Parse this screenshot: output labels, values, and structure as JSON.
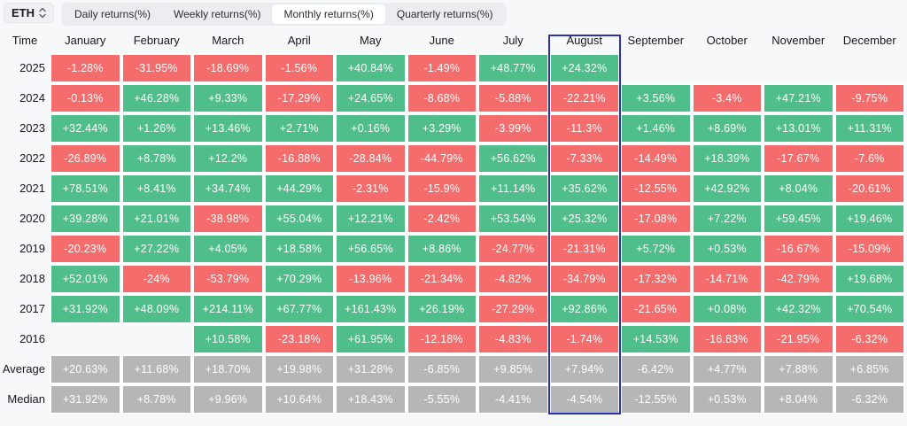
{
  "page": {
    "symbol": "ETH",
    "time_header": "Time",
    "tabs": [
      {
        "label": "Daily returns(%)",
        "active": false
      },
      {
        "label": "Weekly returns(%)",
        "active": false
      },
      {
        "label": "Monthly returns(%)",
        "active": true
      },
      {
        "label": "Quarterly returns(%)",
        "active": false
      }
    ]
  },
  "chart_data": {
    "type": "heatmap",
    "title": "Monthly returns(%)",
    "columns": [
      "January",
      "February",
      "March",
      "April",
      "May",
      "June",
      "July",
      "August",
      "September",
      "October",
      "November",
      "December"
    ],
    "rows": [
      "2025",
      "2024",
      "2023",
      "2022",
      "2021",
      "2020",
      "2019",
      "2018",
      "2017",
      "2016",
      "Average",
      "Median"
    ],
    "summary_rows": [
      "Average",
      "Median"
    ],
    "highlighted_column": "August",
    "values": [
      [
        "-1.28%",
        "-31.95%",
        "-18.69%",
        "-1.56%",
        "+40.84%",
        "-1.49%",
        "+48.77%",
        "+24.32%",
        "",
        "",
        "",
        ""
      ],
      [
        "-0.13%",
        "+46.28%",
        "+9.33%",
        "-17.29%",
        "+24.65%",
        "-8.68%",
        "-5.88%",
        "-22.21%",
        "+3.56%",
        "-3.4%",
        "+47.21%",
        "-9.75%"
      ],
      [
        "+32.44%",
        "+1.26%",
        "+13.46%",
        "+2.71%",
        "+0.16%",
        "+3.29%",
        "-3.99%",
        "-11.3%",
        "+1.46%",
        "+8.69%",
        "+13.01%",
        "+11.31%"
      ],
      [
        "-26.89%",
        "+8.78%",
        "+12.2%",
        "-16.88%",
        "-28.84%",
        "-44.79%",
        "+56.62%",
        "-7.33%",
        "-14.49%",
        "+18.39%",
        "-17.67%",
        "-7.6%"
      ],
      [
        "+78.51%",
        "+8.41%",
        "+34.74%",
        "+44.29%",
        "-2.31%",
        "-15.9%",
        "+11.14%",
        "+35.62%",
        "-12.55%",
        "+42.92%",
        "+8.04%",
        "-20.61%"
      ],
      [
        "+39.28%",
        "+21.01%",
        "-38.98%",
        "+55.04%",
        "+12.21%",
        "-2.42%",
        "+53.54%",
        "+25.32%",
        "-17.08%",
        "+7.22%",
        "+59.45%",
        "+19.46%"
      ],
      [
        "-20.23%",
        "+27.22%",
        "+4.05%",
        "+18.58%",
        "+56.65%",
        "+8.86%",
        "-24.77%",
        "-21.31%",
        "+5.72%",
        "+0.53%",
        "-16.67%",
        "-15.09%"
      ],
      [
        "+52.01%",
        "-24%",
        "-53.79%",
        "+70.29%",
        "-13.96%",
        "-21.34%",
        "-4.82%",
        "-34.79%",
        "-17.32%",
        "-14.71%",
        "-42.79%",
        "+19.68%"
      ],
      [
        "+31.92%",
        "+48.09%",
        "+214.11%",
        "+67.77%",
        "+161.43%",
        "+26.19%",
        "-27.29%",
        "+92.86%",
        "-21.65%",
        "+0.08%",
        "+42.32%",
        "+70.54%"
      ],
      [
        "",
        "",
        "+10.58%",
        "-23.18%",
        "+61.95%",
        "-12.18%",
        "-4.83%",
        "-1.74%",
        "+14.53%",
        "-16.83%",
        "-21.95%",
        "-6.32%"
      ],
      [
        "+20.63%",
        "+11.68%",
        "+18.70%",
        "+19.98%",
        "+31.28%",
        "-6.85%",
        "+9.85%",
        "+7.94%",
        "-6.42%",
        "+4.77%",
        "+7.88%",
        "+6.85%"
      ],
      [
        "+31.92%",
        "+8.78%",
        "+9.96%",
        "+10.64%",
        "+18.43%",
        "-5.55%",
        "-4.41%",
        "-4.54%",
        "-12.55%",
        "+0.53%",
        "+8.04%",
        "-6.32%"
      ]
    ]
  },
  "colors": {
    "positive": "#4fbe8b",
    "negative": "#f56c6c",
    "summary": "#b5b6b8",
    "highlight_border": "#2b32b2"
  }
}
